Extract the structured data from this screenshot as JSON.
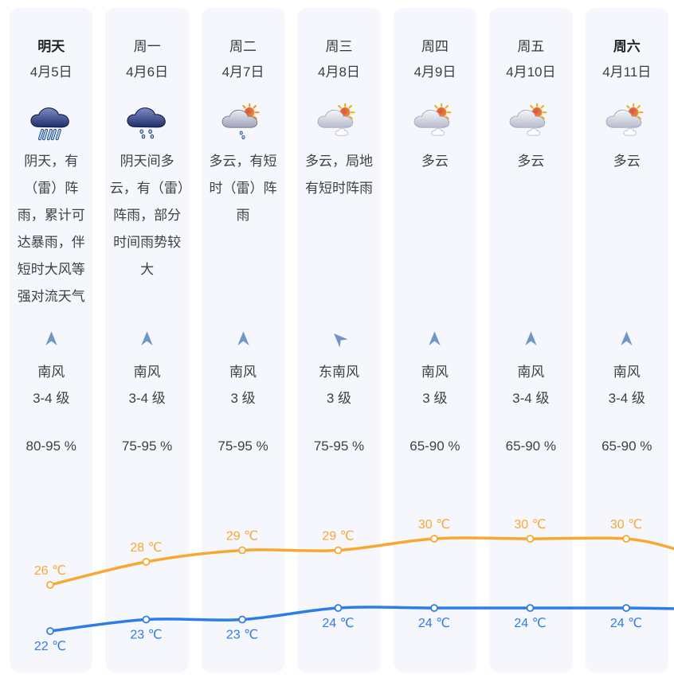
{
  "columns": [
    {
      "day": "明天",
      "emphasized": true,
      "date": "4月5日",
      "icon": "heavy-rain",
      "condition": "阴天，有（雷）阵雨，累计可达暴雨，伴短时大风等强对流天气",
      "wind_direction": "南风",
      "wind_rotation_deg": 0,
      "wind_level": "3-4 级",
      "humidity": "80-95 %"
    },
    {
      "day": "周一",
      "emphasized": false,
      "date": "4月6日",
      "icon": "light-rain",
      "condition": "阴天间多云，有（雷）阵雨，部分时间雨势较大",
      "wind_direction": "南风",
      "wind_rotation_deg": 0,
      "wind_level": "3-4 级",
      "humidity": "75-95 %"
    },
    {
      "day": "周二",
      "emphasized": false,
      "date": "4月7日",
      "icon": "sun-cloud-rain",
      "condition": "多云，有短时（雷）阵雨",
      "wind_direction": "南风",
      "wind_rotation_deg": 0,
      "wind_level": "3 级",
      "humidity": "75-95 %"
    },
    {
      "day": "周三",
      "emphasized": false,
      "date": "4月8日",
      "icon": "sun-cloud",
      "condition": "多云，局地有短时阵雨",
      "wind_direction": "东南风",
      "wind_rotation_deg": -45,
      "wind_level": "3 级",
      "humidity": "75-95 %"
    },
    {
      "day": "周四",
      "emphasized": false,
      "date": "4月9日",
      "icon": "sun-cloud",
      "condition": "多云",
      "wind_direction": "南风",
      "wind_rotation_deg": 0,
      "wind_level": "3 级",
      "humidity": "65-90 %"
    },
    {
      "day": "周五",
      "emphasized": false,
      "date": "4月10日",
      "icon": "sun-cloud",
      "condition": "多云",
      "wind_direction": "南风",
      "wind_rotation_deg": 0,
      "wind_level": "3-4 级",
      "humidity": "65-90 %"
    },
    {
      "day": "周六",
      "emphasized": true,
      "date": "4月11日",
      "icon": "sun-cloud",
      "condition": "多云",
      "wind_direction": "南风",
      "wind_rotation_deg": 0,
      "wind_level": "3-4 级",
      "humidity": "65-90 %"
    }
  ],
  "chart_data": {
    "type": "line",
    "categories": [
      "明天",
      "周一",
      "周二",
      "周三",
      "周四",
      "周五",
      "周六"
    ],
    "series": [
      {
        "name": "最高气温",
        "color": "#faa732",
        "unit": "℃",
        "label_position": "above",
        "values": [
          26,
          28,
          29,
          29,
          30,
          30,
          30
        ]
      },
      {
        "name": "最低气温",
        "color": "#2d7cea",
        "unit": "℃",
        "label_position": "below",
        "values": [
          22,
          23,
          23,
          24,
          24,
          24,
          24
        ]
      }
    ],
    "ylim": [
      21,
      31
    ],
    "grid": false,
    "legend": "none"
  },
  "colors": {
    "column_background": "#f6f7fc",
    "high_line": "#faa732",
    "low_line": "#2d7cea",
    "wind_arrow": "#6f96c7"
  }
}
